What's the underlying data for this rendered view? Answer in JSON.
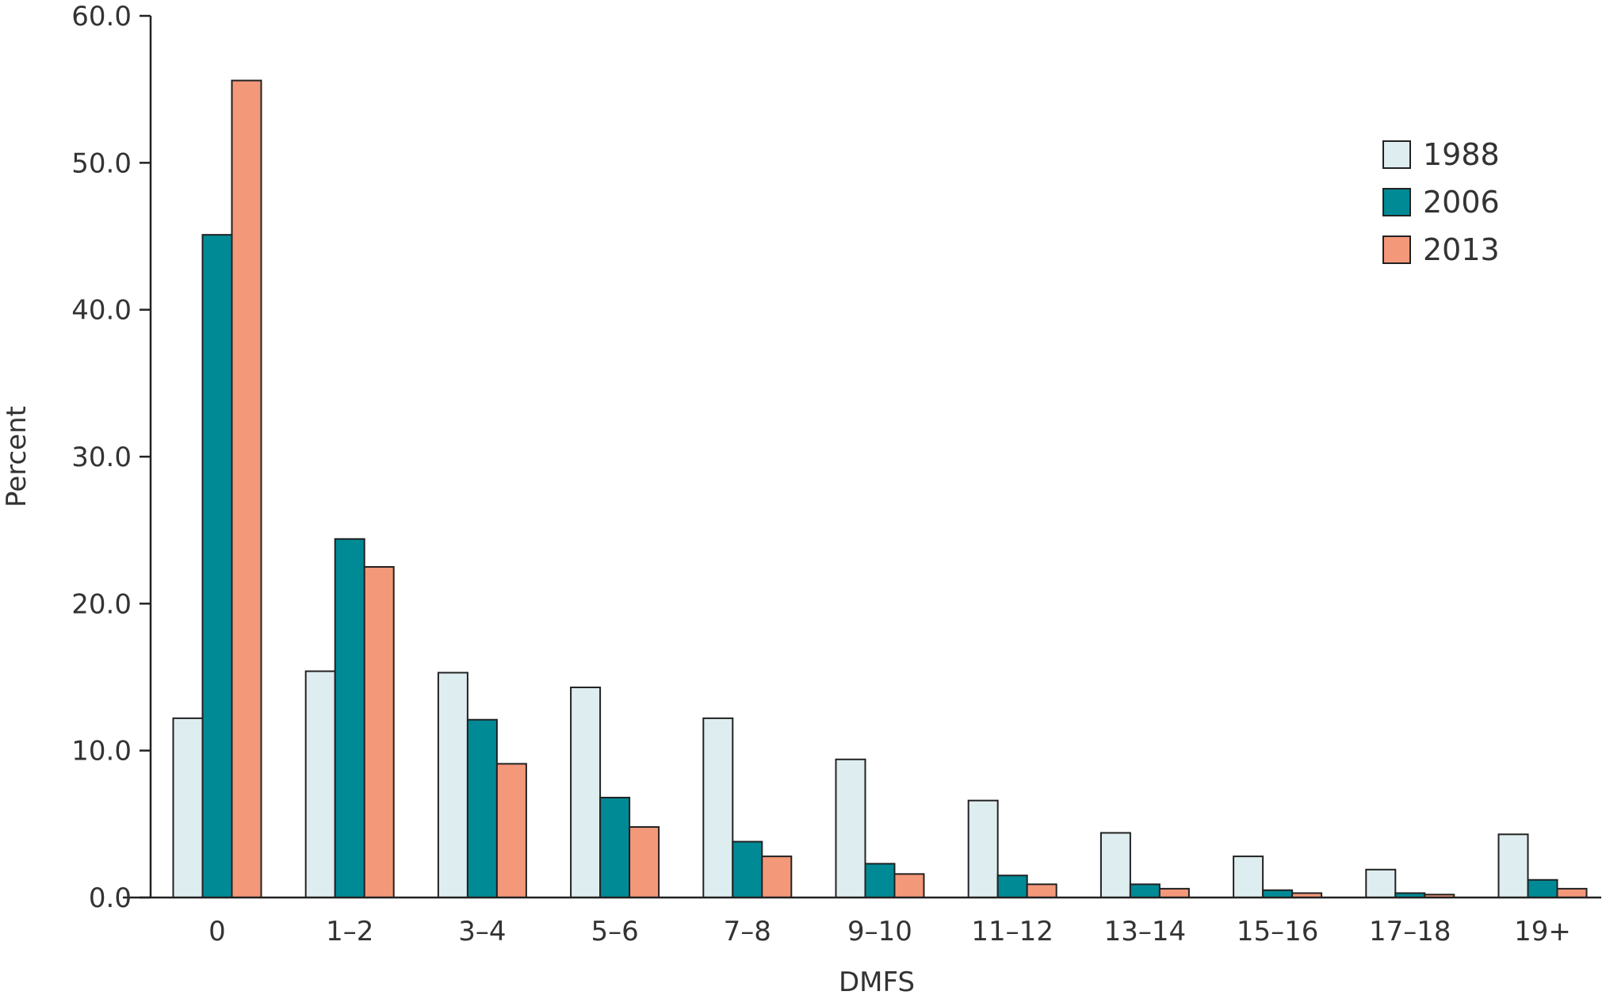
{
  "chart_data": {
    "type": "bar",
    "title": "",
    "xlabel": "DMFS",
    "ylabel": "Percent",
    "ylim": [
      0,
      60
    ],
    "yticks": [
      "0.0",
      "10.0",
      "20.0",
      "30.0",
      "40.0",
      "50.0",
      "60.0"
    ],
    "categories": [
      "0",
      "1–2",
      "3–4",
      "5–6",
      "7–8",
      "9–10",
      "11–12",
      "13–14",
      "15–16",
      "17–18",
      "19+"
    ],
    "series": [
      {
        "name": "1988",
        "color": "#deedf0",
        "values": [
          12.2,
          15.4,
          15.3,
          14.3,
          12.2,
          9.4,
          6.6,
          4.4,
          2.8,
          1.9,
          4.3
        ]
      },
      {
        "name": "2006",
        "color": "#008a96",
        "values": [
          45.1,
          24.4,
          12.1,
          6.8,
          3.8,
          2.3,
          1.5,
          0.9,
          0.5,
          0.3,
          1.2
        ]
      },
      {
        "name": "2013",
        "color": "#f4987a",
        "values": [
          55.6,
          22.5,
          9.1,
          4.8,
          2.8,
          1.6,
          0.9,
          0.6,
          0.3,
          0.2,
          0.6
        ]
      }
    ],
    "legend_position": "top-right",
    "grid": false
  }
}
